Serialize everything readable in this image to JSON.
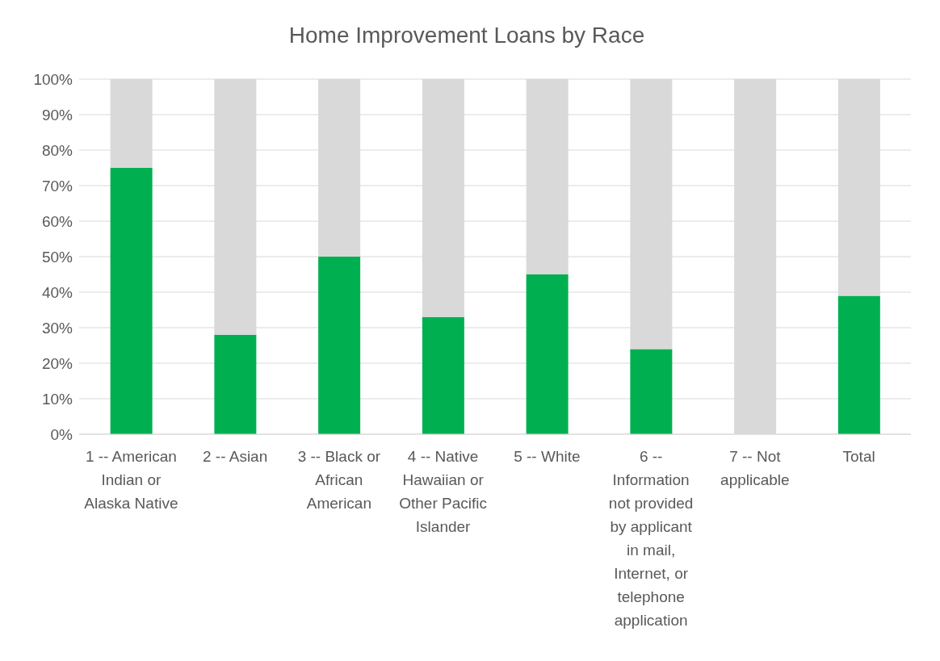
{
  "chart_data": {
    "type": "bar",
    "title": "Home Improvement Loans by Race",
    "stacked": true,
    "categories": [
      "1 -- American Indian or Alaska Native",
      "2 -- Asian",
      "3 -- Black or African American",
      "4 -- Native Hawaiian or Other Pacific Islander",
      "5 -- White",
      "6 -- Information not provided by applicant in mail, Internet, or telephone application",
      "7 -- Not applicable",
      "Total"
    ],
    "series": [
      {
        "color": "#00b050",
        "values": [
          75,
          28,
          50,
          33,
          45,
          24,
          0,
          39
        ]
      },
      {
        "color": "#d9d9d9",
        "values": [
          25,
          72,
          50,
          67,
          55,
          76,
          100,
          61
        ]
      }
    ],
    "ylim": [
      0,
      100
    ],
    "yticks": [
      {
        "value": 0,
        "label": "0%"
      },
      {
        "value": 10,
        "label": "10%"
      },
      {
        "value": 20,
        "label": "20%"
      },
      {
        "value": 30,
        "label": "30%"
      },
      {
        "value": 40,
        "label": "40%"
      },
      {
        "value": 50,
        "label": "50%"
      },
      {
        "value": 60,
        "label": "60%"
      },
      {
        "value": 70,
        "label": "70%"
      },
      {
        "value": 80,
        "label": "80%"
      },
      {
        "value": 90,
        "label": "90%"
      },
      {
        "value": 100,
        "label": "100%"
      }
    ],
    "grid": "y",
    "legend": false
  }
}
